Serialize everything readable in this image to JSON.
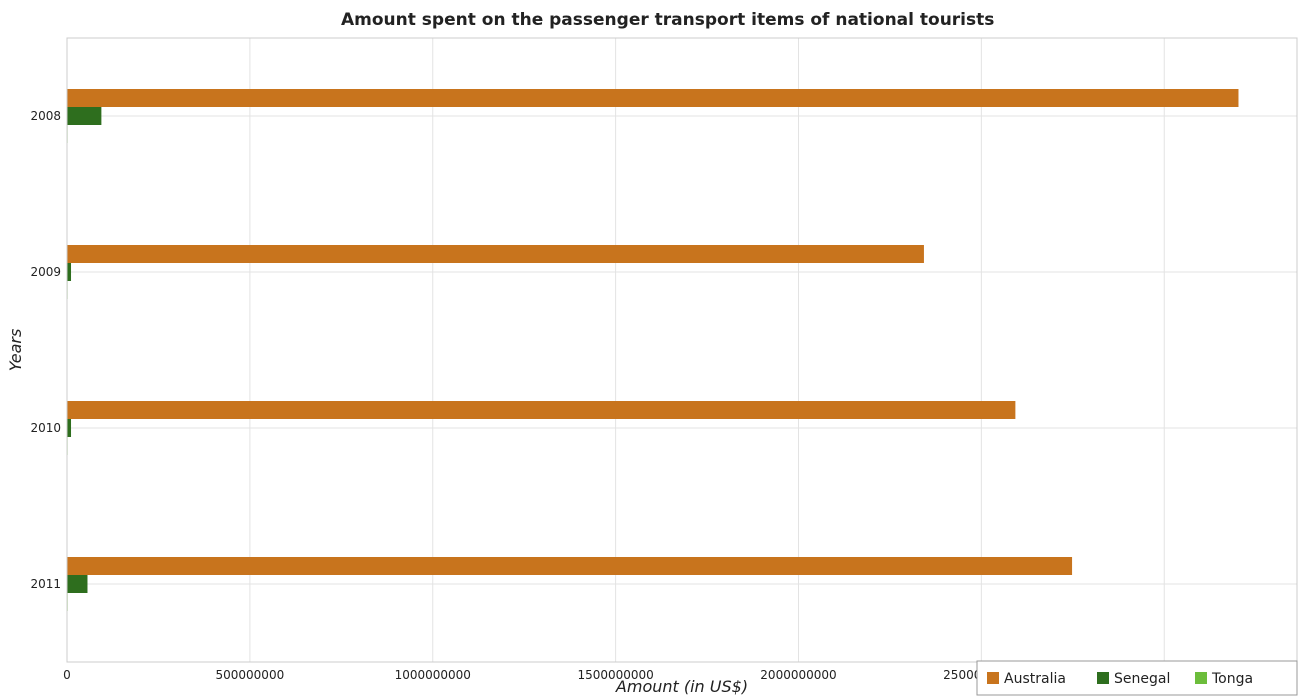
{
  "chart_data": {
    "type": "bar",
    "orientation": "horizontal",
    "title": "Amount spent on the passenger transport items of national tourists",
    "xlabel": "Amount (in US$)",
    "ylabel": "Years",
    "categories": [
      "2008",
      "2009",
      "2010",
      "2011"
    ],
    "series": [
      {
        "name": "Australia",
        "color": "#c8741d",
        "values": [
          3203000000,
          2343000000,
          2593000000,
          2748000000
        ]
      },
      {
        "name": "Senegal",
        "color": "#2e6e1e",
        "values": [
          94000000,
          11000000,
          11000000,
          56000000
        ]
      },
      {
        "name": "Tonga",
        "color": "#6cbd3b",
        "values": [
          300000,
          800000,
          600000,
          1800000
        ]
      }
    ],
    "xlim": [
      0,
      3363000000
    ],
    "xticks": [
      0,
      500000000,
      1000000000,
      1500000000,
      2000000000,
      2500000000,
      3000000000
    ],
    "xtick_labels": [
      "0",
      "500000000",
      "1000000000",
      "1500000000",
      "2000000000",
      "2500000000",
      "3000000000"
    ],
    "grid": true,
    "legend_position": "bottom-right"
  }
}
